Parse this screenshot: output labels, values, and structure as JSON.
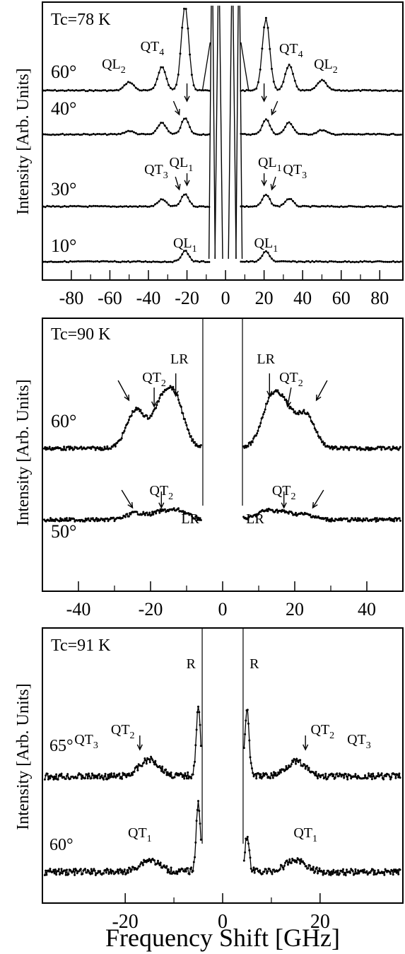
{
  "chart_data": [
    {
      "type": "line",
      "title": "Tc=78 K",
      "xlabel": "",
      "ylabel": "Intensity [Arb. Units]",
      "xlim": [
        -95,
        92
      ],
      "xticks": [
        -80,
        -60,
        -40,
        -20,
        0,
        20,
        40,
        60,
        80
      ],
      "grid": false,
      "series": [
        {
          "name": "60°",
          "peaks": [
            {
              "x": -50,
              "h": 0.1
            },
            {
              "x": -33,
              "h": 0.28
            },
            {
              "x": -21,
              "h": 1.0
            },
            {
              "x": 21,
              "h": 0.85
            },
            {
              "x": 33,
              "h": 0.3
            },
            {
              "x": 50,
              "h": 0.12
            }
          ]
        },
        {
          "name": "40°",
          "peaks": [
            {
              "x": -50,
              "h": 0.08
            },
            {
              "x": -33,
              "h": 0.28
            },
            {
              "x": -21,
              "h": 0.38
            },
            {
              "x": 21,
              "h": 0.36
            },
            {
              "x": 33,
              "h": 0.28
            },
            {
              "x": 50,
              "h": 0.1
            }
          ]
        },
        {
          "name": "30°",
          "peaks": [
            {
              "x": -33,
              "h": 0.18
            },
            {
              "x": -21,
              "h": 0.32
            },
            {
              "x": 21,
              "h": 0.3
            },
            {
              "x": 33,
              "h": 0.2
            }
          ]
        },
        {
          "name": "10°",
          "peaks": [
            {
              "x": -21,
              "h": 0.38
            },
            {
              "x": 21,
              "h": 0.36
            }
          ]
        }
      ],
      "annotations": [
        {
          "text": "QL",
          "sub": "2",
          "series": "60°",
          "side": "left"
        },
        {
          "text": "QT",
          "sub": "4",
          "series": "60°",
          "side": "left"
        },
        {
          "text": "QT",
          "sub": "4",
          "series": "60°",
          "side": "right"
        },
        {
          "text": "QL",
          "sub": "2",
          "series": "60°",
          "side": "right"
        },
        {
          "text": "QT",
          "sub": "3",
          "series": "30°",
          "side": "left"
        },
        {
          "text": "QL",
          "sub": "1",
          "series": "30°",
          "side": "left"
        },
        {
          "text": "QL",
          "sub": "1",
          "series": "30°",
          "side": "right"
        },
        {
          "text": "QT",
          "sub": "3",
          "series": "30°",
          "side": "right"
        },
        {
          "text": "QL",
          "sub": "1",
          "series": "10°",
          "side": "left"
        },
        {
          "text": "QL",
          "sub": "1",
          "series": "10°",
          "side": "right"
        }
      ]
    },
    {
      "type": "line",
      "title": "Tc=90 K",
      "xlabel": "",
      "ylabel": "Intensity [Arb. Units]",
      "xlim": [
        -50,
        50
      ],
      "xticks": [
        -40,
        -20,
        0,
        20,
        40
      ],
      "grid": false,
      "series": [
        {
          "name": "60°",
          "peaks": [
            {
              "x": -24,
              "h": 0.45
            },
            {
              "x": -17,
              "h": 0.48
            },
            {
              "x": -13,
              "h": 0.52
            },
            {
              "x": 13,
              "h": 0.48
            },
            {
              "x": 17,
              "h": 0.44
            },
            {
              "x": 23,
              "h": 0.4
            }
          ]
        },
        {
          "name": "50°",
          "peaks": [
            {
              "x": -24,
              "h": 0.16
            },
            {
              "x": -17,
              "h": 0.18
            },
            {
              "x": -12,
              "h": 0.2
            },
            {
              "x": 12,
              "h": 0.2
            },
            {
              "x": 17,
              "h": 0.16
            },
            {
              "x": 23,
              "h": 0.12
            }
          ]
        }
      ],
      "annotations": [
        {
          "text": "QT",
          "sub": "2",
          "series": "60°",
          "side": "left"
        },
        {
          "text": "LR",
          "sub": "",
          "series": "60°",
          "side": "left"
        },
        {
          "text": "LR",
          "sub": "",
          "series": "60°",
          "side": "right"
        },
        {
          "text": "QT",
          "sub": "2",
          "series": "60°",
          "side": "right"
        },
        {
          "text": "QT",
          "sub": "2",
          "series": "50°",
          "side": "left"
        },
        {
          "text": "LR",
          "sub": "",
          "series": "50°",
          "side": "left"
        },
        {
          "text": "LR",
          "sub": "",
          "series": "50°",
          "side": "right"
        },
        {
          "text": "QT",
          "sub": "2",
          "series": "50°",
          "side": "right"
        }
      ]
    },
    {
      "type": "line",
      "title": "Tc=91 K",
      "xlabel": "Frequency Shift [GHz]",
      "ylabel": "Intensity [Arb. Units]",
      "xlim": [
        -37,
        37
      ],
      "xticks": [
        -20,
        0,
        20
      ],
      "grid": false,
      "series": [
        {
          "name": "65°",
          "peaks": [
            {
              "x": -5,
              "h": 1.0
            },
            {
              "x": 5,
              "h": 1.0
            },
            {
              "x": -15,
              "h": 0.25
            },
            {
              "x": 15,
              "h": 0.22
            }
          ]
        },
        {
          "name": "60°",
          "peaks": [
            {
              "x": -5,
              "h": 1.0
            },
            {
              "x": 5,
              "h": 0.5
            },
            {
              "x": -15,
              "h": 0.18
            },
            {
              "x": 15,
              "h": 0.18
            }
          ]
        }
      ],
      "annotations": [
        {
          "text": "R",
          "sub": "",
          "series": "65°",
          "side": "left"
        },
        {
          "text": "R",
          "sub": "",
          "series": "65°",
          "side": "right"
        },
        {
          "text": "QT",
          "sub": "3",
          "series": "65°",
          "side": "left"
        },
        {
          "text": "QT",
          "sub": "2",
          "series": "65°",
          "side": "left"
        },
        {
          "text": "QT",
          "sub": "2",
          "series": "65°",
          "side": "right"
        },
        {
          "text": "QT",
          "sub": "3",
          "series": "65°",
          "side": "right"
        },
        {
          "text": "QT",
          "sub": "1",
          "series": "60°",
          "side": "left"
        },
        {
          "text": "QT",
          "sub": "1",
          "series": "60°",
          "side": "right"
        }
      ]
    }
  ]
}
